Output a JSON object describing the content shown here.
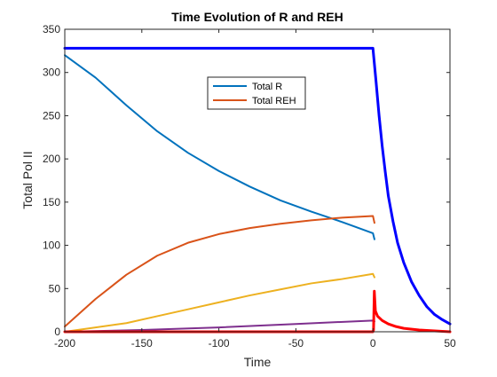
{
  "chart_data": {
    "type": "line",
    "title": "Time Evolution of R and REH",
    "xlabel": "Time",
    "ylabel": "Total Pol II",
    "xlim": [
      -200,
      50
    ],
    "ylim": [
      0,
      350
    ],
    "xticks": [
      -200,
      -150,
      -100,
      -50,
      0,
      50
    ],
    "yticks": [
      0,
      50,
      100,
      150,
      200,
      250,
      300,
      350
    ],
    "xtick_labels": [
      "-200",
      "-150",
      "-100",
      "-50",
      "0",
      "50"
    ],
    "ytick_labels": [
      "0",
      "50",
      "100",
      "150",
      "200",
      "250",
      "300",
      "350"
    ],
    "grid": false,
    "legend_position": "upper-center",
    "legend": [
      {
        "label": "Total R",
        "color": "#0072BD"
      },
      {
        "label": "Total REH",
        "color": "#D95319"
      }
    ],
    "series": [
      {
        "name": "Total R",
        "color": "#0072BD",
        "width": 2,
        "points": [
          [
            -200,
            320
          ],
          [
            -180,
            294
          ],
          [
            -160,
            262
          ],
          [
            -140,
            232
          ],
          [
            -120,
            207
          ],
          [
            -100,
            186
          ],
          [
            -80,
            168
          ],
          [
            -60,
            152
          ],
          [
            -40,
            139
          ],
          [
            -20,
            127
          ],
          [
            0,
            114
          ],
          [
            1,
            107
          ]
        ]
      },
      {
        "name": "Total REH",
        "color": "#D95319",
        "width": 2,
        "points": [
          [
            -200,
            6
          ],
          [
            -180,
            38
          ],
          [
            -160,
            66
          ],
          [
            -140,
            88
          ],
          [
            -120,
            103
          ],
          [
            -100,
            113
          ],
          [
            -80,
            120
          ],
          [
            -60,
            125
          ],
          [
            -40,
            129
          ],
          [
            -20,
            132
          ],
          [
            0,
            134
          ],
          [
            1,
            126
          ]
        ]
      },
      {
        "color": "#EDB120",
        "width": 2,
        "points": [
          [
            -200,
            0
          ],
          [
            -180,
            5
          ],
          [
            -160,
            10
          ],
          [
            -140,
            18
          ],
          [
            -120,
            26
          ],
          [
            -100,
            34
          ],
          [
            -80,
            42
          ],
          [
            -60,
            49
          ],
          [
            -40,
            56
          ],
          [
            -20,
            61
          ],
          [
            0,
            67
          ],
          [
            1,
            63
          ]
        ]
      },
      {
        "color": "#7E2F8E",
        "width": 2,
        "points": [
          [
            -200,
            0
          ],
          [
            -150,
            2
          ],
          [
            -100,
            5
          ],
          [
            -50,
            9
          ],
          [
            0,
            13
          ],
          [
            1,
            12
          ]
        ]
      },
      {
        "color": "#0000FF",
        "width": 3,
        "points": [
          [
            -200,
            328
          ],
          [
            0,
            328
          ],
          [
            2,
            290
          ],
          [
            4,
            250
          ],
          [
            6,
            215
          ],
          [
            8,
            185
          ],
          [
            10,
            157
          ],
          [
            13,
            128
          ],
          [
            16,
            103
          ],
          [
            20,
            80
          ],
          [
            25,
            58
          ],
          [
            30,
            42
          ],
          [
            35,
            29
          ],
          [
            40,
            20
          ],
          [
            45,
            14
          ],
          [
            50,
            9
          ]
        ]
      },
      {
        "color": "#FF0000",
        "width": 3,
        "points": [
          [
            -200,
            0
          ],
          [
            0,
            0
          ],
          [
            0.4,
            2
          ],
          [
            0.9,
            47
          ],
          [
            1.6,
            24
          ],
          [
            3,
            18
          ],
          [
            6,
            13
          ],
          [
            10,
            9
          ],
          [
            15,
            6
          ],
          [
            20,
            4
          ],
          [
            30,
            2
          ],
          [
            40,
            1
          ],
          [
            50,
            0
          ]
        ]
      }
    ]
  }
}
